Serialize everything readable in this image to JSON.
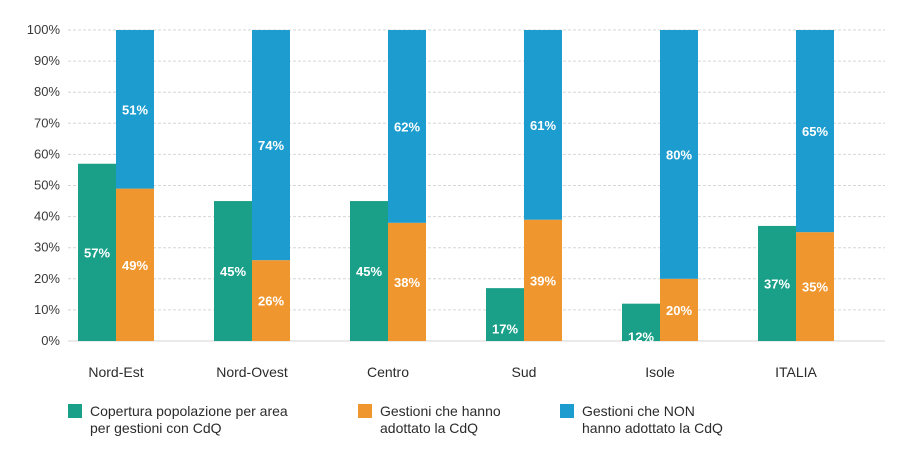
{
  "chart_data": {
    "type": "bar",
    "stacked_last_two": true,
    "categories": [
      "Nord-Est",
      "Nord-Ovest",
      "Centro",
      "Sud",
      "Isole",
      "ITALIA"
    ],
    "ylim": [
      0,
      100
    ],
    "yticks": [
      "0%",
      "10%",
      "20%",
      "30%",
      "40%",
      "50%",
      "60%",
      "70%",
      "80%",
      "90%",
      "100%"
    ],
    "grid": true,
    "legend_position": "bottom",
    "series": [
      {
        "name": "Copertura popolazione per area per gestioni con CdQ",
        "legend_lines": [
          "Copertura popolazione per area",
          "per gestioni con CdQ"
        ],
        "color": "#1aa089",
        "values": [
          57,
          45,
          45,
          17,
          12,
          37
        ],
        "labels": [
          "57%",
          "45%",
          "45%",
          "17%",
          "12%",
          "37%"
        ]
      },
      {
        "name": "Gestioni che hanno adottato la CdQ",
        "legend_lines": [
          "Gestioni che hanno",
          "adottato la CdQ"
        ],
        "color": "#f0962e",
        "values": [
          49,
          26,
          38,
          39,
          20,
          35
        ],
        "labels": [
          "49%",
          "26%",
          "38%",
          "39%",
          "20%",
          "35%"
        ]
      },
      {
        "name": "Gestioni che NON hanno adottato la CdQ",
        "legend_lines": [
          "Gestioni che NON",
          "hanno adottato la CdQ"
        ],
        "color": "#1d9ccf",
        "values": [
          51,
          74,
          62,
          61,
          80,
          65
        ],
        "labels": [
          "51%",
          "74%",
          "62%",
          "61%",
          "80%",
          "65%"
        ]
      }
    ]
  }
}
